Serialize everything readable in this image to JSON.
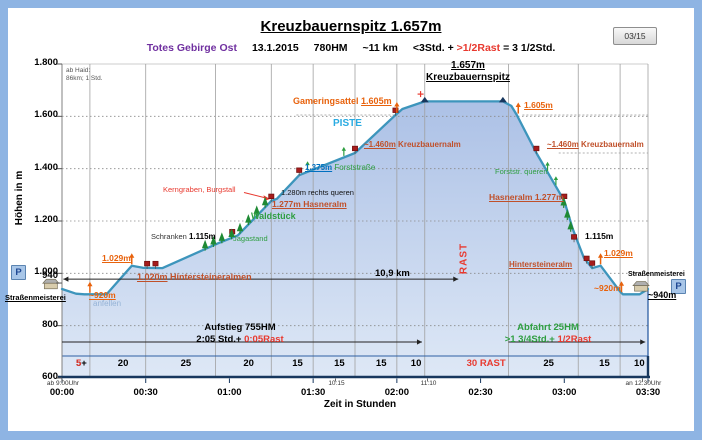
{
  "frame": {
    "page_badge": "03/15"
  },
  "colors": {
    "frame_blue": "#8EB4E3",
    "profile_line": "#3D95BC",
    "fill_top": "#ACC1E6",
    "fill_bottom": "#DEE8F6",
    "accent_orange": "#E8620C",
    "alm_brick": "#C0502A",
    "green": "#2E9E40",
    "red": "#E8392F",
    "blue": "#0070C0",
    "piste_cyan": "#29ABE2",
    "purple": "#7030A0",
    "axis_navy": "#17375E"
  },
  "header": {
    "title": "Kreuzbauernspitz 1.657m",
    "region": "Totes Gebirge Ost",
    "date": "13.1.2015",
    "hm": "780HM",
    "distance": "~11 km",
    "time_black": "<3Std. +",
    "time_red": ">1/2Rast",
    "time_total": "= 3 1/2Std."
  },
  "info_box": {
    "line1": "ab Haid:",
    "line2": "86km; 1 Std."
  },
  "axis": {
    "y_title": "Höhen in m",
    "x_title": "Zeit in Stunden"
  },
  "chart_data": {
    "type": "area",
    "title": "Kreuzbauernspitz 1.657m",
    "xlabel": "Zeit in Stunden",
    "ylabel": "Höhen in m",
    "x_unit": "minutes from 9:00",
    "xlim": [
      0,
      210
    ],
    "ylim": [
      600,
      1800
    ],
    "grid": "on",
    "y_ticks": [
      {
        "label": "1.800",
        "elev": 1800
      },
      {
        "label": "1.600",
        "elev": 1600
      },
      {
        "label": "1.400",
        "elev": 1400
      },
      {
        "label": "1.200",
        "elev": 1200
      },
      {
        "label": "1.000",
        "elev": 1000
      },
      {
        "label": "940",
        "elev": 940,
        "dy": -12
      },
      {
        "label": "800",
        "elev": 800
      },
      {
        "label": "600",
        "elev": 600
      }
    ],
    "x_ticks": [
      {
        "label": "00:00",
        "min": 0
      },
      {
        "label": "00:30",
        "min": 30
      },
      {
        "label": "01:00",
        "min": 60
      },
      {
        "label": "01:30",
        "min": 90
      },
      {
        "label": "02:00",
        "min": 120
      },
      {
        "label": "02:30",
        "min": 150
      },
      {
        "label": "03:00",
        "min": 180
      },
      {
        "label": "03:30",
        "min": 210
      }
    ],
    "x_sub_labels": [
      {
        "label": "ab 9:00Uhr",
        "min": 0
      },
      {
        "label": "10:15",
        "min": 98
      },
      {
        "label": "11:10",
        "min": 131
      },
      {
        "label": "an 12:30Uhr",
        "min": 208
      }
    ],
    "gridlines_dotted_elev": [
      800,
      1000,
      1200,
      1400,
      1600
    ],
    "gridline_top_elev": 1800,
    "profile": [
      [
        0,
        940
      ],
      [
        5,
        922
      ],
      [
        8,
        920
      ],
      [
        16,
        920
      ],
      [
        25,
        1029
      ],
      [
        29,
        1021
      ],
      [
        36,
        1020
      ],
      [
        56,
        1115
      ],
      [
        63,
        1145
      ],
      [
        75,
        1277
      ],
      [
        77,
        1285
      ],
      [
        85,
        1375
      ],
      [
        105,
        1460
      ],
      [
        119,
        1600
      ],
      [
        122,
        1628
      ],
      [
        130,
        1657
      ],
      [
        158,
        1657
      ],
      [
        161,
        1640
      ],
      [
        163,
        1605
      ],
      [
        170,
        1460
      ],
      [
        180,
        1277
      ],
      [
        183,
        1170
      ],
      [
        185,
        1115
      ],
      [
        187,
        1060
      ],
      [
        190,
        1020
      ],
      [
        193,
        1029
      ],
      [
        200,
        930
      ],
      [
        201,
        920
      ],
      [
        207,
        920
      ],
      [
        210,
        940
      ]
    ],
    "segment_boundaries_min": [
      0,
      10,
      30,
      55,
      75,
      90,
      105,
      120,
      130,
      160,
      185,
      200,
      210
    ],
    "segments": [
      {
        "text": "5+",
        "red": "5"
      },
      {
        "text": "20"
      },
      {
        "text": "25"
      },
      {
        "text": "20"
      },
      {
        "text": "15"
      },
      {
        "text": "15"
      },
      {
        "text": "15"
      },
      {
        "text": "10"
      },
      {
        "text": "",
        "red": "30 RAST"
      },
      {
        "text": "25"
      },
      {
        "text": "15"
      },
      {
        "text": "10"
      }
    ],
    "markers": {
      "flags": [
        [
          30.5,
          1020
        ],
        [
          33.5,
          1020
        ],
        [
          61,
          1142
        ],
        [
          75,
          1277
        ],
        [
          85,
          1377
        ],
        [
          105,
          1460
        ],
        [
          119.5,
          1606
        ],
        [
          170,
          1460
        ],
        [
          180,
          1277
        ],
        [
          183.5,
          1122
        ],
        [
          188,
          1040
        ],
        [
          190,
          1022
        ]
      ],
      "orange_arrows": [
        [
          10,
          920
        ],
        [
          25,
          1029
        ],
        [
          120,
          1607
        ],
        [
          163.5,
          1605
        ],
        [
          193,
          1029
        ],
        [
          200.5,
          922
        ]
      ],
      "green_arrows": [
        [
          88,
          1390
        ],
        [
          101,
          1445
        ],
        [
          174,
          1388
        ],
        [
          177,
          1333
        ]
      ],
      "trees": [
        [
          52,
          1096
        ],
        [
          55,
          1110
        ],
        [
          58,
          1124
        ],
        [
          61.5,
          1139
        ],
        [
          64.5,
          1161
        ],
        [
          67.5,
          1194
        ],
        [
          70.5,
          1227
        ],
        [
          73.5,
          1260
        ],
        [
          180.5,
          1259
        ],
        [
          181.8,
          1213
        ],
        [
          183,
          1168
        ]
      ],
      "summit_triangles": [
        [
          130,
          1657
        ],
        [
          158,
          1657
        ]
      ],
      "summit_cross": [
        128.5,
        1685
      ],
      "buildings": [
        [
          -4,
          941
        ],
        [
          207.5,
          932
        ]
      ],
      "leader_dotted": [
        {
          "elev": 1605,
          "t1": 84,
          "t2": 119
        },
        {
          "elev": 1605,
          "t1": 165,
          "t2": 210
        },
        {
          "elev": 1460,
          "t1": 178,
          "t2": 210
        }
      ]
    },
    "distance_arrow": {
      "label": "10,9 km",
      "elev": 978,
      "t1": 0.5,
      "t2": 142
    },
    "ascent_arrow_minutes": [
      0,
      129
    ],
    "descent_arrow_minutes": [
      160,
      209
    ]
  },
  "annotations": {
    "peak_elev": "1.657m",
    "peak_name": "Kreuzbauernspitz",
    "gameringsattel_name": "Gameringsattel",
    "gameringsattel_elev": "1.605m",
    "piste": "PISTE",
    "kbalm_up_elev": "~1.460m",
    "kbalm_up_name": "Kreuzbauernalm",
    "forststrasse_elev": "1.375m",
    "forststrasse_name": "Forststraße",
    "kerngraben": "Kerngraben, Burgstall",
    "rechts_queren": "1.280m rechts queren",
    "hasneralm_up": "1.277m Hasneralm",
    "waldstueck": "Waldstück",
    "schranken_label": "Schranken",
    "schranken_elev": "1.115m",
    "jagastand": "Jagastand",
    "m1029_up": "1.029m",
    "hst_almen_elev": "1.020m",
    "hst_almen_name": "Hintersteineralmen",
    "m920_up": "~920m",
    "anfellen": "anfellen",
    "p_label": "P",
    "strassenmeisterei": "Straßenmeisterei",
    "m1605_down": "1.605m",
    "kbalm_down_elev": "~1.460m",
    "kbalm_down_name": "Kreuzbauernalm",
    "forststr_queren": "Forststr. queren",
    "hasneralm_down": "Hasneralm 1.277m",
    "m1115_down": "1.115m",
    "hst_alm_down": "Hintersteineralm",
    "m1029_down": "1.029m",
    "m920_down": "~920m",
    "m940_right": "~940m",
    "km_label": "10,9 km",
    "rast_vertical": "RAST",
    "aufstieg_line1": "Aufstieg 755HM",
    "aufstieg_time": "2:05 Std.+",
    "aufstieg_rast": "0:05Rast",
    "abfahrt_line1": "Abfahrt 25HM",
    "abfahrt_time": ">1 3/4Std.+",
    "abfahrt_rast": "1/2Rast"
  }
}
